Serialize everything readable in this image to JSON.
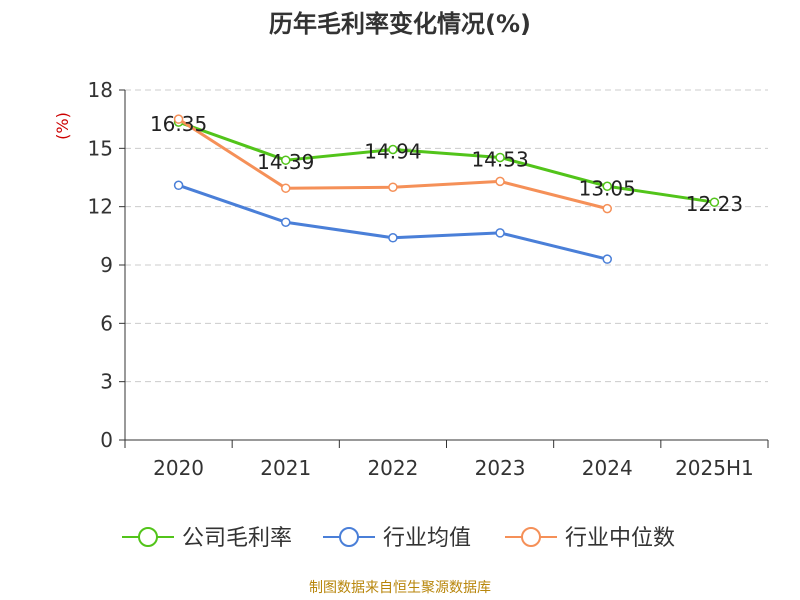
{
  "chart_data": {
    "type": "line",
    "title": "历年毛利率变化情况(%)",
    "ylabel": "(%)",
    "categories": [
      "2020",
      "2021",
      "2022",
      "2023",
      "2024",
      "2025H1"
    ],
    "yticks": [
      "0",
      "3",
      "6",
      "9",
      "12",
      "15",
      "18"
    ],
    "ylim": [
      0,
      18
    ],
    "grid": true,
    "legend_position": "bottom",
    "series": [
      {
        "name": "公司毛利率",
        "color": "#52c41a",
        "values": [
          16.35,
          14.39,
          14.94,
          14.53,
          13.05,
          12.23
        ],
        "labels": [
          "16.35",
          "14.39",
          "14.94",
          "14.53",
          "13.05",
          "12.23"
        ]
      },
      {
        "name": "行业均值",
        "color": "#4a7fd8",
        "values": [
          13.1,
          11.2,
          10.4,
          10.65,
          9.3,
          null
        ]
      },
      {
        "name": "行业中位数",
        "color": "#f59058",
        "values": [
          16.5,
          12.95,
          13.0,
          13.3,
          11.9,
          null
        ]
      }
    ]
  },
  "footer": {
    "source": "制图数据来自恒生聚源数据库"
  }
}
